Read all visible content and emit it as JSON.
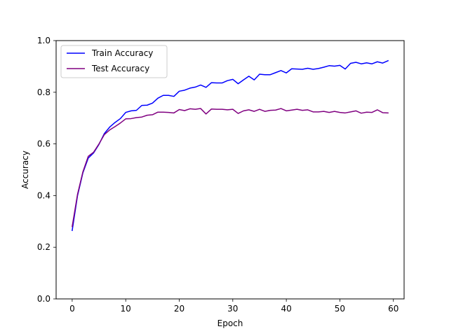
{
  "chart_data": {
    "type": "line",
    "title": "",
    "xlabel": "Epoch",
    "ylabel": "Accuracy",
    "xlim": [
      -3,
      62
    ],
    "ylim": [
      0.0,
      1.0
    ],
    "xticks": [
      0,
      10,
      20,
      30,
      40,
      50,
      60
    ],
    "yticks": [
      0.0,
      0.2,
      0.4,
      0.6,
      0.8,
      1.0
    ],
    "xtick_labels": [
      "0",
      "10",
      "20",
      "30",
      "40",
      "50",
      "60"
    ],
    "ytick_labels": [
      "0.0",
      "0.2",
      "0.4",
      "0.6",
      "0.8",
      "1.0"
    ],
    "grid": false,
    "legend_position": "upper-left",
    "x": [
      0,
      1,
      2,
      3,
      4,
      5,
      6,
      7,
      8,
      9,
      10,
      11,
      12,
      13,
      14,
      15,
      16,
      17,
      18,
      19,
      20,
      21,
      22,
      23,
      24,
      25,
      26,
      27,
      28,
      29,
      30,
      31,
      32,
      33,
      34,
      35,
      36,
      37,
      38,
      39,
      40,
      41,
      42,
      43,
      44,
      45,
      46,
      47,
      48,
      49,
      50,
      51,
      52,
      53,
      54,
      55,
      56,
      57,
      58,
      59
    ],
    "series": [
      {
        "name": "Train Accuracy",
        "color": "#0000ff",
        "values": [
          0.265,
          0.4,
          0.488,
          0.545,
          0.565,
          0.598,
          0.64,
          0.665,
          0.683,
          0.698,
          0.722,
          0.728,
          0.73,
          0.749,
          0.75,
          0.758,
          0.777,
          0.788,
          0.788,
          0.784,
          0.804,
          0.808,
          0.816,
          0.82,
          0.828,
          0.819,
          0.837,
          0.836,
          0.836,
          0.845,
          0.85,
          0.833,
          0.848,
          0.862,
          0.848,
          0.87,
          0.868,
          0.868,
          0.876,
          0.884,
          0.875,
          0.891,
          0.89,
          0.889,
          0.893,
          0.889,
          0.892,
          0.897,
          0.903,
          0.901,
          0.904,
          0.89,
          0.912,
          0.916,
          0.91,
          0.914,
          0.91,
          0.918,
          0.913,
          0.922
        ]
      },
      {
        "name": "Test Accuracy",
        "color": "#800080",
        "values": [
          0.28,
          0.405,
          0.492,
          0.552,
          0.568,
          0.6,
          0.636,
          0.654,
          0.667,
          0.681,
          0.697,
          0.698,
          0.702,
          0.704,
          0.711,
          0.713,
          0.723,
          0.723,
          0.722,
          0.72,
          0.733,
          0.729,
          0.736,
          0.734,
          0.737,
          0.716,
          0.735,
          0.734,
          0.734,
          0.732,
          0.734,
          0.718,
          0.728,
          0.732,
          0.726,
          0.734,
          0.726,
          0.73,
          0.731,
          0.737,
          0.728,
          0.731,
          0.734,
          0.73,
          0.732,
          0.724,
          0.724,
          0.726,
          0.722,
          0.726,
          0.722,
          0.72,
          0.724,
          0.728,
          0.719,
          0.723,
          0.722,
          0.732,
          0.721,
          0.72
        ]
      }
    ]
  }
}
